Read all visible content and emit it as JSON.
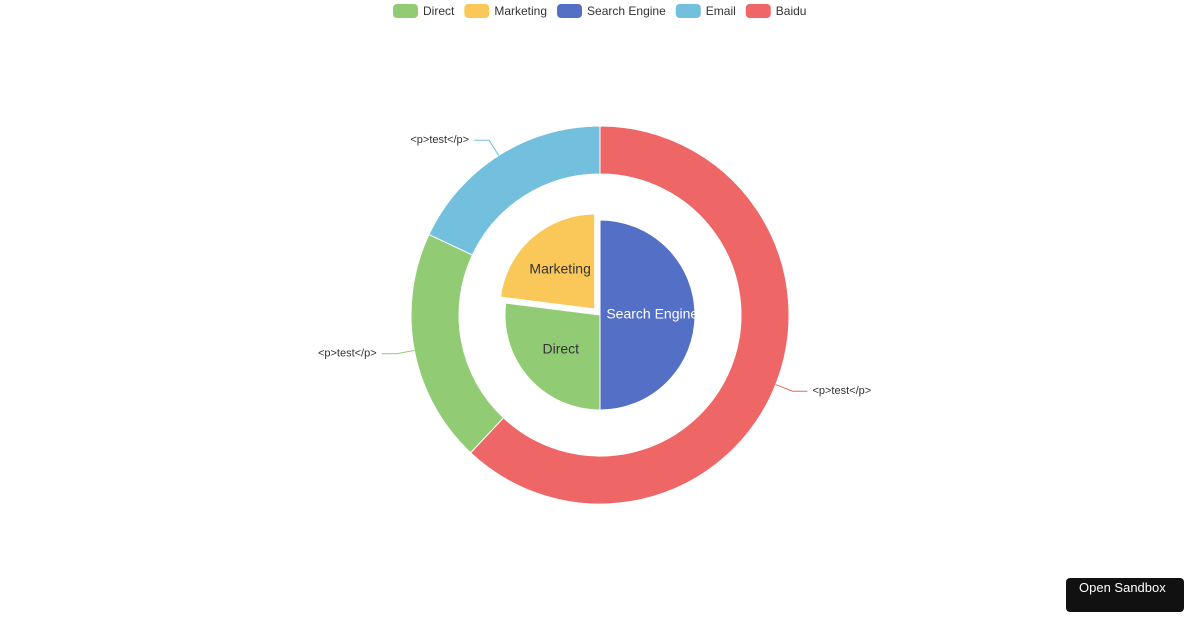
{
  "chart_data": {
    "type": "pie",
    "legend": [
      {
        "name": "Direct",
        "color": "#91cc75"
      },
      {
        "name": "Marketing",
        "color": "#fac858"
      },
      {
        "name": "Search Engine",
        "color": "#5470c6"
      },
      {
        "name": "Email",
        "color": "#73c0de"
      },
      {
        "name": "Baidu",
        "color": "#ee6666"
      }
    ],
    "series": [
      {
        "categories": [
          "Search Engine",
          "Direct",
          "Marketing"
        ],
        "values": [
          50,
          27,
          23
        ],
        "selected": "Marketing"
      },
      {
        "categories": [
          "Baidu",
          "Direct",
          "Email"
        ],
        "values": [
          62,
          20,
          18
        ],
        "labels": [
          "<p>test</p>",
          "<p>test</p>",
          "<p>test</p>"
        ]
      }
    ]
  },
  "button": "Open Sandbox"
}
